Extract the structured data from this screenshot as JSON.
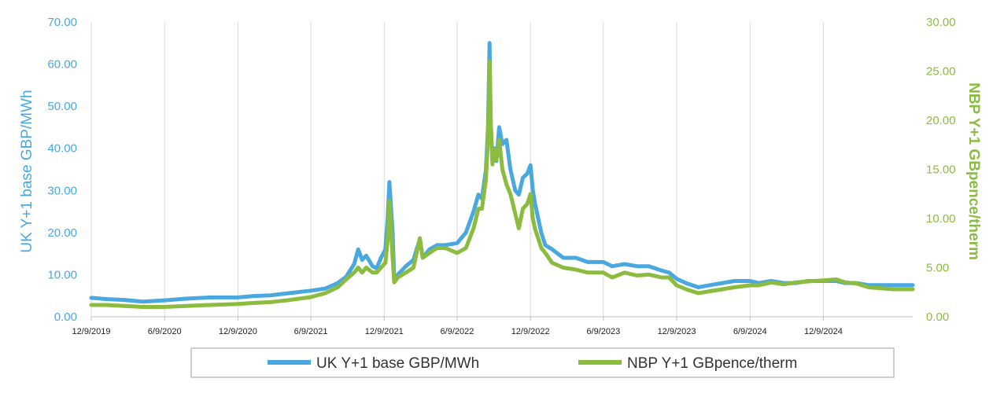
{
  "chart_data": {
    "type": "line",
    "x_type": "date",
    "x_tick_labels": [
      "12/9/2019",
      "6/9/2020",
      "12/9/2020",
      "6/9/2021",
      "12/9/2021",
      "6/9/2022",
      "12/9/2022",
      "6/9/2023",
      "12/9/2023",
      "6/9/2024",
      "12/9/2024"
    ],
    "xlim": [
      "2019-12-09",
      "2025-07-20"
    ],
    "ylabel_left": "UK Y+1 base GBP/MWh",
    "ylabel_right": "NBP Y+1 GBpence/therm",
    "ylim_left": [
      0,
      70
    ],
    "ylim_right": [
      0,
      30
    ],
    "yticks_left": [
      "0.00",
      "10.00",
      "20.00",
      "30.00",
      "40.00",
      "50.00",
      "60.00",
      "70.00"
    ],
    "yticks_right": [
      "0.00",
      "5.00",
      "10.00",
      "15.00",
      "20.00",
      "25.00",
      "30.00"
    ],
    "grid": "vertical",
    "legend_position": "bottom",
    "series": [
      {
        "name": "UK Y+1 base GBP/MWh",
        "axis": "left",
        "color": "#4aa8e0",
        "points": [
          [
            "2019-12-09",
            4.5
          ],
          [
            "2020-01-15",
            4.2
          ],
          [
            "2020-03-01",
            4.0
          ],
          [
            "2020-04-15",
            3.6
          ],
          [
            "2020-06-09",
            3.9
          ],
          [
            "2020-08-01",
            4.3
          ],
          [
            "2020-10-01",
            4.6
          ],
          [
            "2020-12-09",
            4.6
          ],
          [
            "2021-01-15",
            4.9
          ],
          [
            "2021-03-01",
            5.1
          ],
          [
            "2021-04-15",
            5.6
          ],
          [
            "2021-06-09",
            6.2
          ],
          [
            "2021-07-15",
            6.7
          ],
          [
            "2021-08-15",
            8.0
          ],
          [
            "2021-09-05",
            9.5
          ],
          [
            "2021-09-25",
            12.5
          ],
          [
            "2021-10-05",
            16.0
          ],
          [
            "2021-10-15",
            13.5
          ],
          [
            "2021-10-25",
            14.5
          ],
          [
            "2021-11-10",
            12.0
          ],
          [
            "2021-11-20",
            11.5
          ],
          [
            "2021-12-01",
            14.0
          ],
          [
            "2021-12-12",
            16.0
          ],
          [
            "2021-12-18",
            24.0
          ],
          [
            "2021-12-22",
            32.0
          ],
          [
            "2021-12-26",
            26.0
          ],
          [
            "2021-12-30",
            20.0
          ],
          [
            "2022-01-03",
            8.5
          ],
          [
            "2022-01-12",
            10.0
          ],
          [
            "2022-02-01",
            12.0
          ],
          [
            "2022-02-20",
            13.5
          ],
          [
            "2022-02-28",
            16.0
          ],
          [
            "2022-03-05",
            17.5
          ],
          [
            "2022-03-08",
            18.5
          ],
          [
            "2022-03-15",
            14.0
          ],
          [
            "2022-04-01",
            16.0
          ],
          [
            "2022-04-20",
            17.0
          ],
          [
            "2022-05-10",
            17.0
          ],
          [
            "2022-06-09",
            17.5
          ],
          [
            "2022-07-01",
            20.0
          ],
          [
            "2022-07-20",
            25.0
          ],
          [
            "2022-08-01",
            29.0
          ],
          [
            "2022-08-10",
            28.0
          ],
          [
            "2022-08-20",
            35.0
          ],
          [
            "2022-08-25",
            45.0
          ],
          [
            "2022-08-27",
            55.0
          ],
          [
            "2022-08-29",
            65.0
          ],
          [
            "2022-09-01",
            45.0
          ],
          [
            "2022-09-05",
            38.0
          ],
          [
            "2022-09-10",
            40.0
          ],
          [
            "2022-09-15",
            37.0
          ],
          [
            "2022-09-22",
            45.0
          ],
          [
            "2022-09-30",
            41.0
          ],
          [
            "2022-10-10",
            42.0
          ],
          [
            "2022-10-20",
            35.0
          ],
          [
            "2022-11-01",
            30.0
          ],
          [
            "2022-11-10",
            29.0
          ],
          [
            "2022-11-20",
            33.0
          ],
          [
            "2022-12-01",
            34.0
          ],
          [
            "2022-12-09",
            36.0
          ],
          [
            "2022-12-15",
            30.0
          ],
          [
            "2022-12-20",
            27.0
          ],
          [
            "2023-01-05",
            20.0
          ],
          [
            "2023-01-15",
            17.0
          ],
          [
            "2023-02-01",
            16.0
          ],
          [
            "2023-03-01",
            14.0
          ],
          [
            "2023-04-01",
            14.0
          ],
          [
            "2023-05-01",
            13.0
          ],
          [
            "2023-06-09",
            13.0
          ],
          [
            "2023-07-01",
            12.0
          ],
          [
            "2023-08-01",
            12.5
          ],
          [
            "2023-09-01",
            12.0
          ],
          [
            "2023-10-01",
            12.0
          ],
          [
            "2023-11-01",
            11.0
          ],
          [
            "2023-11-20",
            10.5
          ],
          [
            "2023-12-09",
            9.0
          ],
          [
            "2024-01-01",
            8.0
          ],
          [
            "2024-02-01",
            7.0
          ],
          [
            "2024-03-01",
            7.5
          ],
          [
            "2024-04-01",
            8.0
          ],
          [
            "2024-05-01",
            8.5
          ],
          [
            "2024-06-09",
            8.5
          ],
          [
            "2024-07-01",
            8.0
          ],
          [
            "2024-08-01",
            8.5
          ],
          [
            "2024-09-01",
            8.0
          ],
          [
            "2024-10-01",
            8.0
          ],
          [
            "2024-11-01",
            8.5
          ],
          [
            "2024-12-09",
            8.5
          ],
          [
            "2025-01-10",
            8.5
          ],
          [
            "2025-02-01",
            8.0
          ],
          [
            "2025-03-01",
            8.0
          ],
          [
            "2025-04-01",
            7.5
          ],
          [
            "2025-05-01",
            7.5
          ],
          [
            "2025-06-01",
            7.5
          ],
          [
            "2025-07-20",
            7.5
          ]
        ]
      },
      {
        "name": "NBP Y+1 GBpence/therm",
        "axis": "right",
        "color": "#8cbc3f",
        "points": [
          [
            "2019-12-09",
            1.2
          ],
          [
            "2020-01-15",
            1.2
          ],
          [
            "2020-03-01",
            1.1
          ],
          [
            "2020-04-15",
            1.0
          ],
          [
            "2020-06-09",
            1.0
          ],
          [
            "2020-08-01",
            1.1
          ],
          [
            "2020-10-01",
            1.2
          ],
          [
            "2020-12-09",
            1.3
          ],
          [
            "2021-01-15",
            1.4
          ],
          [
            "2021-03-01",
            1.5
          ],
          [
            "2021-04-15",
            1.7
          ],
          [
            "2021-06-09",
            2.0
          ],
          [
            "2021-07-15",
            2.4
          ],
          [
            "2021-08-15",
            3.0
          ],
          [
            "2021-09-05",
            3.8
          ],
          [
            "2021-09-25",
            4.5
          ],
          [
            "2021-10-05",
            5.0
          ],
          [
            "2021-10-15",
            4.5
          ],
          [
            "2021-10-25",
            5.0
          ],
          [
            "2021-11-10",
            4.5
          ],
          [
            "2021-11-20",
            4.5
          ],
          [
            "2021-12-01",
            5.0
          ],
          [
            "2021-12-12",
            5.5
          ],
          [
            "2021-12-18",
            8.0
          ],
          [
            "2021-12-22",
            11.8
          ],
          [
            "2021-12-26",
            9.0
          ],
          [
            "2021-12-30",
            6.0
          ],
          [
            "2022-01-03",
            3.5
          ],
          [
            "2022-01-12",
            4.0
          ],
          [
            "2022-02-01",
            4.5
          ],
          [
            "2022-02-20",
            5.0
          ],
          [
            "2022-02-28",
            6.5
          ],
          [
            "2022-03-05",
            7.5
          ],
          [
            "2022-03-08",
            8.0
          ],
          [
            "2022-03-15",
            6.0
          ],
          [
            "2022-04-01",
            6.5
          ],
          [
            "2022-04-20",
            7.0
          ],
          [
            "2022-05-10",
            7.0
          ],
          [
            "2022-06-09",
            6.5
          ],
          [
            "2022-07-01",
            7.0
          ],
          [
            "2022-07-20",
            9.0
          ],
          [
            "2022-08-01",
            11.0
          ],
          [
            "2022-08-10",
            11.0
          ],
          [
            "2022-08-20",
            14.0
          ],
          [
            "2022-08-25",
            18.0
          ],
          [
            "2022-08-27",
            22.0
          ],
          [
            "2022-08-29",
            26.0
          ],
          [
            "2022-09-01",
            20.0
          ],
          [
            "2022-09-05",
            15.5
          ],
          [
            "2022-09-10",
            17.0
          ],
          [
            "2022-09-15",
            16.0
          ],
          [
            "2022-09-22",
            18.0
          ],
          [
            "2022-09-30",
            15.0
          ],
          [
            "2022-10-10",
            13.5
          ],
          [
            "2022-10-20",
            12.5
          ],
          [
            "2022-11-01",
            10.5
          ],
          [
            "2022-11-10",
            9.0
          ],
          [
            "2022-11-20",
            11.0
          ],
          [
            "2022-12-01",
            11.5
          ],
          [
            "2022-12-09",
            12.5
          ],
          [
            "2022-12-15",
            10.0
          ],
          [
            "2022-12-20",
            9.0
          ],
          [
            "2023-01-05",
            7.0
          ],
          [
            "2023-01-15",
            6.5
          ],
          [
            "2023-02-01",
            5.5
          ],
          [
            "2023-03-01",
            5.0
          ],
          [
            "2023-04-01",
            4.8
          ],
          [
            "2023-05-01",
            4.5
          ],
          [
            "2023-06-09",
            4.5
          ],
          [
            "2023-07-01",
            4.0
          ],
          [
            "2023-08-01",
            4.5
          ],
          [
            "2023-09-01",
            4.2
          ],
          [
            "2023-10-01",
            4.3
          ],
          [
            "2023-11-01",
            4.0
          ],
          [
            "2023-11-20",
            4.0
          ],
          [
            "2023-12-09",
            3.2
          ],
          [
            "2024-01-01",
            2.8
          ],
          [
            "2024-02-01",
            2.4
          ],
          [
            "2024-03-01",
            2.6
          ],
          [
            "2024-04-01",
            2.8
          ],
          [
            "2024-05-01",
            3.0
          ],
          [
            "2024-06-09",
            3.2
          ],
          [
            "2024-07-01",
            3.2
          ],
          [
            "2024-08-01",
            3.5
          ],
          [
            "2024-09-01",
            3.3
          ],
          [
            "2024-10-01",
            3.5
          ],
          [
            "2024-11-01",
            3.6
          ],
          [
            "2024-12-09",
            3.7
          ],
          [
            "2025-01-10",
            3.8
          ],
          [
            "2025-02-01",
            3.5
          ],
          [
            "2025-03-01",
            3.4
          ],
          [
            "2025-04-01",
            3.0
          ],
          [
            "2025-05-01",
            2.9
          ],
          [
            "2025-06-01",
            2.8
          ],
          [
            "2025-07-20",
            2.8
          ]
        ]
      }
    ]
  }
}
